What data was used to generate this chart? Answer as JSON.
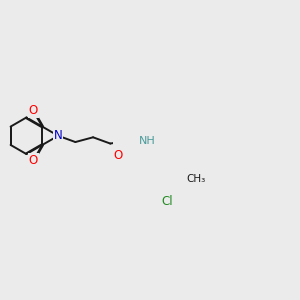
{
  "background_color": "#ebebeb",
  "bond_color": "#1a1a1a",
  "bond_width": 1.4,
  "atom_colors": {
    "O": "#ff0000",
    "N": "#0000cd",
    "H": "#4a9a9a",
    "Cl": "#228B22",
    "C": "#1a1a1a"
  },
  "font_size": 8.5
}
